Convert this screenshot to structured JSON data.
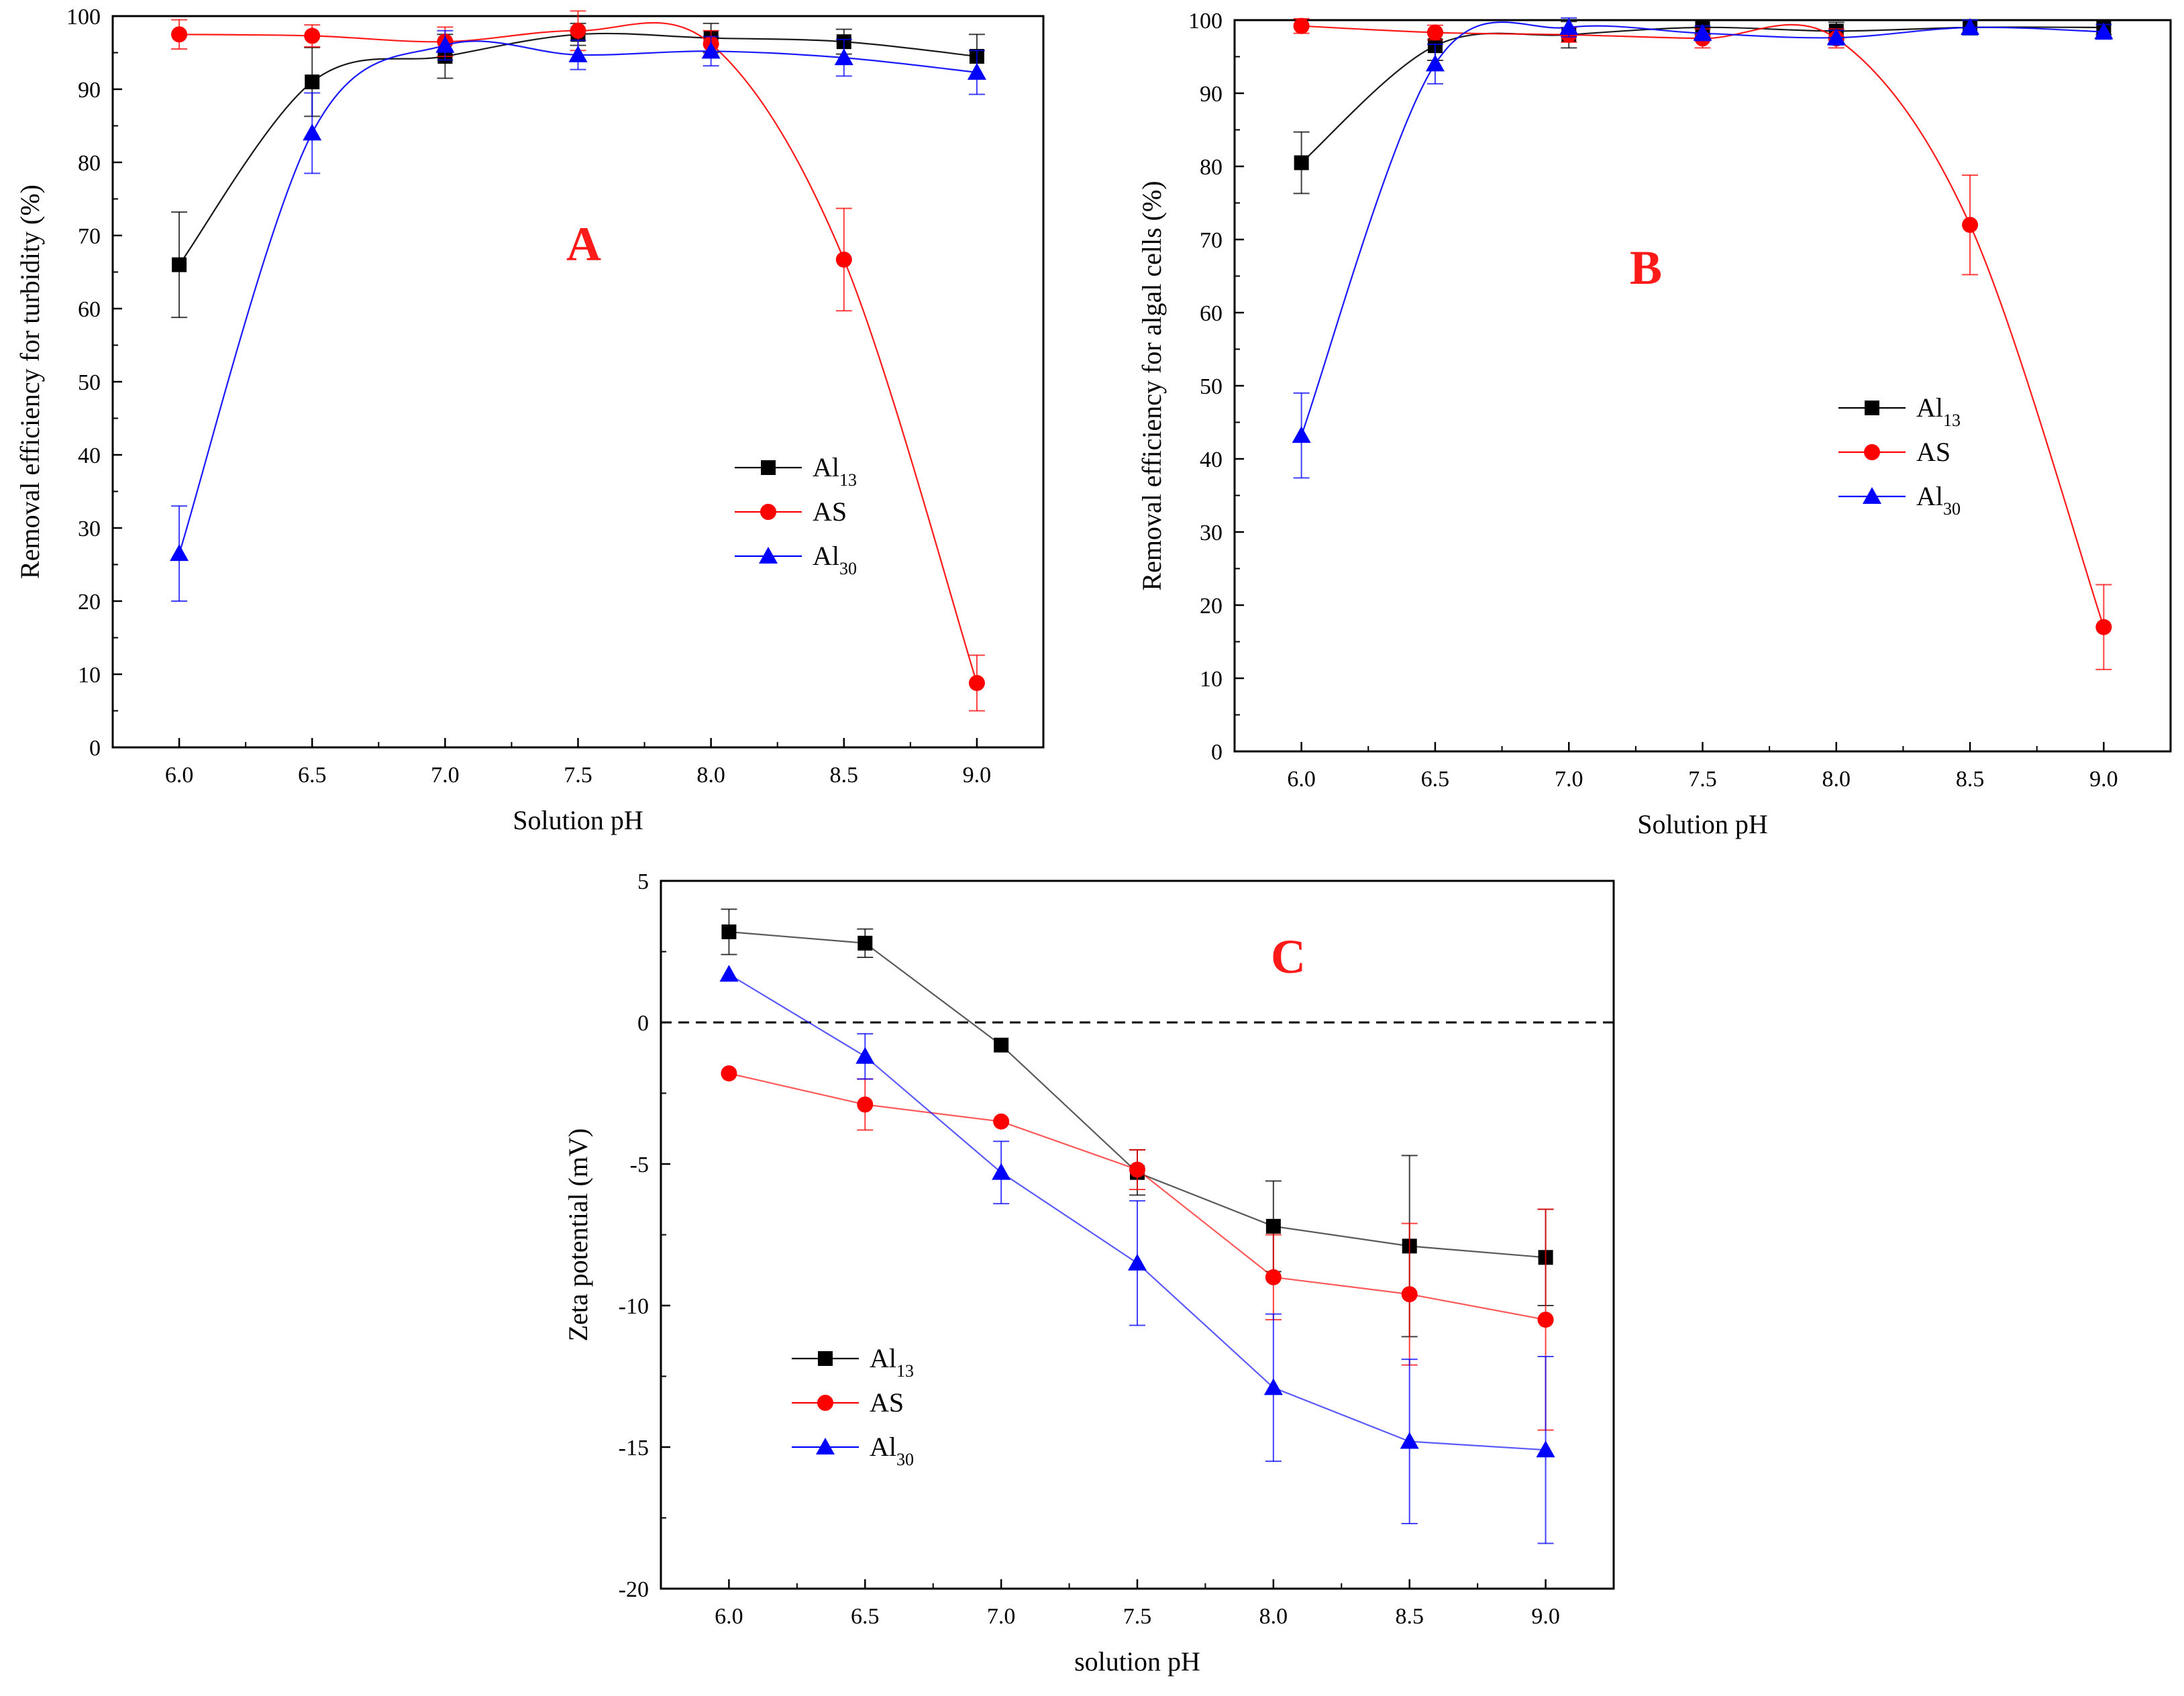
{
  "figure": {
    "panels": [
      "A",
      "B",
      "C"
    ]
  },
  "colors": {
    "Al13": "#000000",
    "AS": "#ff0000",
    "Al30": "#0000ff",
    "axis": "#000000"
  },
  "chart_data": [
    {
      "id": "A",
      "type": "line",
      "panel_label": "A",
      "title": "",
      "xlabel": "Solution pH",
      "ylabel": "Removal efficiency for turbidity (%)",
      "x": [
        6.0,
        6.5,
        7.0,
        7.5,
        8.0,
        8.5,
        9.0
      ],
      "xticks": [
        "6.0",
        "6.5",
        "7.0",
        "7.5",
        "8.0",
        "8.5",
        "9.0"
      ],
      "xlim": [
        5.75,
        9.25
      ],
      "ylim": [
        0,
        100
      ],
      "yticks": [
        "0",
        "10",
        "20",
        "30",
        "40",
        "50",
        "60",
        "70",
        "80",
        "90",
        "100"
      ],
      "ytick_values": [
        0,
        10,
        20,
        30,
        40,
        50,
        60,
        70,
        80,
        90,
        100
      ],
      "zero_line": false,
      "legend_position": "center-right",
      "series": [
        {
          "key": "Al13",
          "label": "Al",
          "label_sub": "13",
          "marker": "square",
          "values": [
            66,
            91,
            94.5,
            97.5,
            97,
            96.5,
            94.5
          ],
          "errors": [
            7.2,
            4.7,
            3,
            1.5,
            2,
            1.7,
            3
          ]
        },
        {
          "key": "AS",
          "label": "AS",
          "label_sub": "",
          "marker": "circle",
          "values": [
            97.5,
            97.3,
            96.5,
            98,
            96.2,
            66.7,
            8.8
          ],
          "errors": [
            2,
            1.5,
            2,
            2.7,
            1.8,
            7,
            3.8
          ]
        },
        {
          "key": "Al30",
          "label": "Al",
          "label_sub": "30",
          "marker": "triangle",
          "values": [
            26.5,
            84,
            96,
            94.7,
            95.2,
            94.3,
            92.3
          ],
          "errors": [
            6.5,
            5.5,
            2,
            2,
            2,
            2.5,
            3
          ]
        }
      ]
    },
    {
      "id": "B",
      "type": "line",
      "panel_label": "B",
      "title": "",
      "xlabel": "Solution pH",
      "ylabel": "Removal efficiency for algal cells (%)",
      "x": [
        6.0,
        6.5,
        7.0,
        7.5,
        8.0,
        8.5,
        9.0
      ],
      "xticks": [
        "6.0",
        "6.5",
        "7.0",
        "7.5",
        "8.0",
        "8.5",
        "9.0"
      ],
      "xlim": [
        5.75,
        9.25
      ],
      "ylim": [
        0,
        100
      ],
      "yticks": [
        "0",
        "10",
        "20",
        "30",
        "40",
        "50",
        "60",
        "70",
        "80",
        "90",
        "100"
      ],
      "ytick_values": [
        0,
        10,
        20,
        30,
        40,
        50,
        60,
        70,
        80,
        90,
        100
      ],
      "zero_line": false,
      "legend_position": "center-right",
      "series": [
        {
          "key": "Al13",
          "label": "Al",
          "label_sub": "13",
          "marker": "square",
          "values": [
            80.5,
            96.5,
            98,
            99,
            98.5,
            99,
            99
          ],
          "errors": [
            4.2,
            2,
            1.8,
            1,
            1.2,
            1,
            1
          ]
        },
        {
          "key": "AS",
          "label": "AS",
          "label_sub": "",
          "marker": "circle",
          "values": [
            99.2,
            98.3,
            98,
            97.5,
            97.5,
            72,
            17
          ],
          "errors": [
            1,
            1,
            1,
            1.3,
            1.3,
            6.8,
            5.8
          ]
        },
        {
          "key": "Al30",
          "label": "Al",
          "label_sub": "30",
          "marker": "triangle",
          "values": [
            43.2,
            94,
            99,
            98.2,
            97.6,
            99,
            98.4
          ],
          "errors": [
            5.8,
            2.7,
            1.3,
            1,
            1,
            1,
            1
          ]
        }
      ]
    },
    {
      "id": "C",
      "type": "line",
      "panel_label": "C",
      "title": "",
      "xlabel": "solution pH",
      "ylabel": "Zeta potential (mV)",
      "x": [
        6.0,
        6.5,
        7.0,
        7.5,
        8.0,
        8.5,
        9.0
      ],
      "xticks": [
        "6.0",
        "6.5",
        "7.0",
        "7.5",
        "8.0",
        "8.5",
        "9.0"
      ],
      "xlim": [
        5.75,
        9.25
      ],
      "ylim": [
        -20,
        5
      ],
      "yticks": [
        "-20",
        "-15",
        "-10",
        "-5",
        "0",
        "5"
      ],
      "ytick_values": [
        -20,
        -15,
        -10,
        -5,
        0,
        5
      ],
      "zero_line": true,
      "legend_position": "lower-left",
      "series": [
        {
          "key": "Al13",
          "label": "Al",
          "label_sub": "13",
          "marker": "square",
          "values": [
            3.2,
            2.8,
            -0.8,
            -5.3,
            -7.2,
            -7.9,
            -8.3
          ],
          "errors": [
            0.8,
            0.5,
            0,
            0.8,
            1.6,
            3.2,
            1.7
          ]
        },
        {
          "key": "AS",
          "label": "AS",
          "label_sub": "",
          "marker": "circle",
          "values": [
            -1.8,
            -2.9,
            -3.5,
            -5.2,
            -9,
            -9.6,
            -10.5
          ],
          "errors": [
            0,
            0.9,
            0,
            0.7,
            1.5,
            2.5,
            3.9
          ]
        },
        {
          "key": "Al30",
          "label": "Al",
          "label_sub": "30",
          "marker": "triangle",
          "values": [
            1.7,
            -1.2,
            -5.3,
            -8.5,
            -12.9,
            -14.8,
            -15.1
          ],
          "errors": [
            0,
            0.8,
            1.1,
            2.2,
            2.6,
            2.9,
            3.3
          ]
        }
      ]
    }
  ]
}
